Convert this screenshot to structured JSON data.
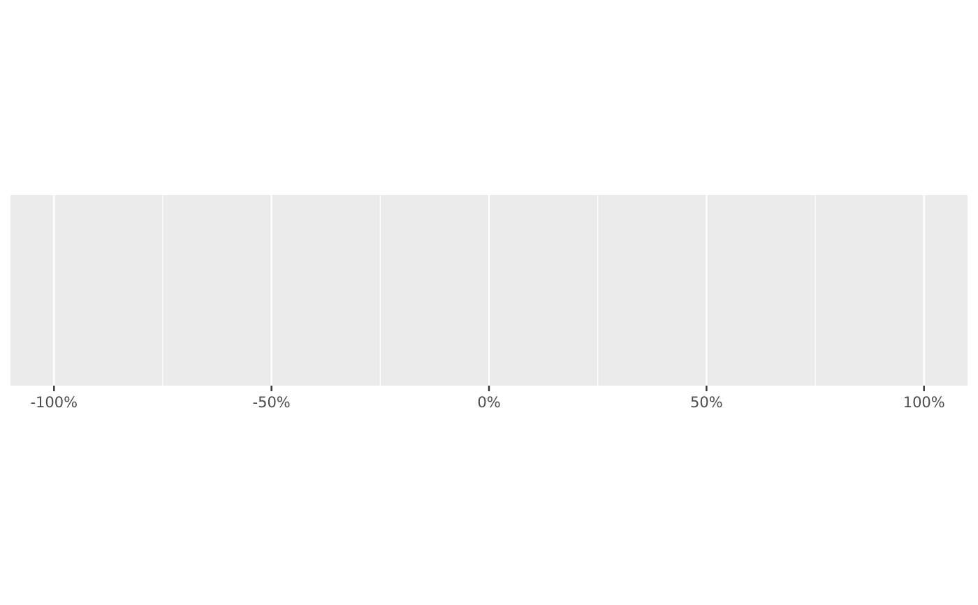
{
  "chart_data": {
    "type": "scatter",
    "title": "",
    "xlabel": "",
    "ylabel": "",
    "xlim": [
      -1.1,
      1.1
    ],
    "x_major_ticks": [
      -1,
      -0.5,
      0,
      0.5,
      1
    ],
    "x_minor_ticks": [
      -0.75,
      -0.25,
      0.25,
      0.75
    ],
    "x_tick_labels": [
      "-100%",
      "-50%",
      "0%",
      "50%",
      "100%"
    ],
    "y_ticks": [],
    "series": [],
    "grid": true,
    "legend": "none",
    "colors": {
      "panel_background": "#EBEBEB",
      "grid_line": "#FFFFFF",
      "tick_mark": "#333333",
      "tick_label": "#4D4D4D"
    }
  }
}
